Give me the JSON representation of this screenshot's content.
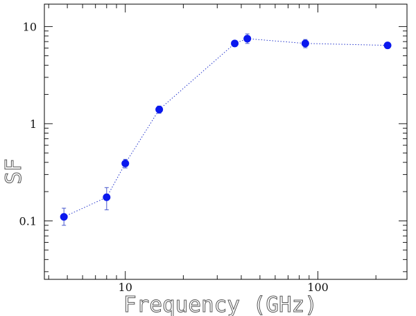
{
  "chart_data": {
    "type": "scatter",
    "xlabel": "Frequency (GHz)",
    "ylabel": "SF",
    "xscale": "log",
    "yscale": "log",
    "xlim": [
      3.8,
      290
    ],
    "ylim": [
      0.025,
      17
    ],
    "x_tick_labels": [
      {
        "value": 10,
        "label": "10"
      },
      {
        "value": 100,
        "label": "100"
      }
    ],
    "y_tick_labels": [
      {
        "value": 0.1,
        "label": "0.1"
      },
      {
        "value": 1,
        "label": "1"
      },
      {
        "value": 10,
        "label": "10"
      }
    ],
    "series": [
      {
        "x": [
          4.8,
          8.0,
          10.0,
          15.0,
          37.0,
          43.0,
          86.0,
          230.0
        ],
        "y": [
          0.11,
          0.175,
          0.39,
          1.4,
          6.7,
          7.5,
          6.7,
          6.4
        ],
        "y_err_low": [
          0.02,
          0.045,
          0.04,
          0.12,
          0.45,
          0.8,
          0.65,
          0.45
        ],
        "y_err_high": [
          0.025,
          0.045,
          0.04,
          0.12,
          0.45,
          0.9,
          0.65,
          0.45
        ],
        "color": "#0a18ee"
      }
    ],
    "grid": false,
    "legend": "none"
  }
}
